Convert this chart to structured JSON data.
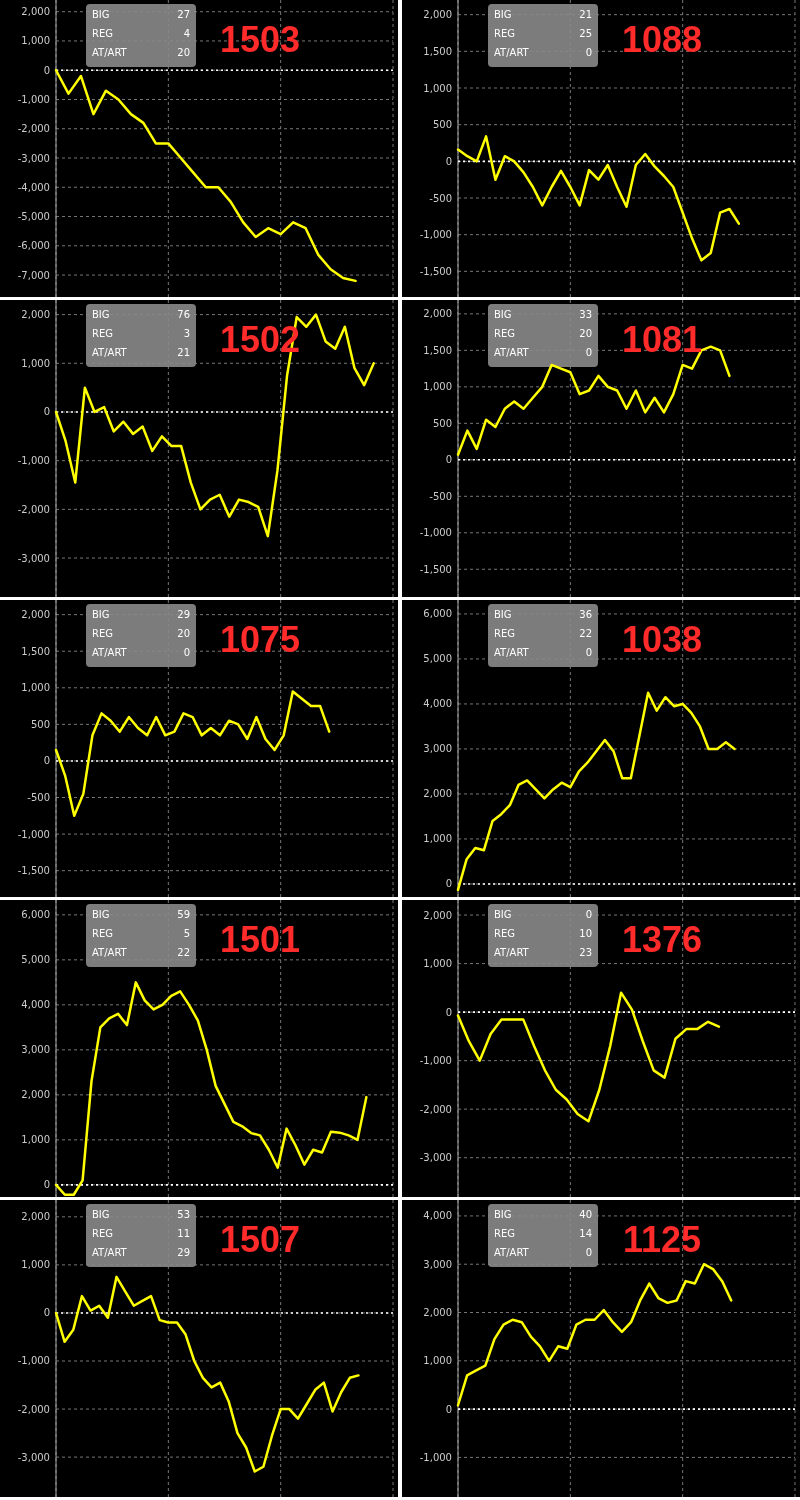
{
  "chart_data": [
    {
      "type": "line",
      "title": "1503",
      "annotations": [
        "BIG",
        "27",
        "REG",
        "4",
        "AT/ART",
        "20"
      ],
      "ylim": [
        -7750,
        2400
      ],
      "yticks": [
        {
          "value": 2000,
          "label": "2,000"
        },
        {
          "value": 1000,
          "label": "1,000"
        },
        0,
        {
          "value": -1000,
          "label": "-1,000"
        },
        {
          "value": -2000,
          "label": "-2,000"
        },
        {
          "value": -3000,
          "label": "-3,000"
        },
        {
          "value": -4000,
          "label": "-4,000"
        },
        {
          "value": -5000,
          "label": "-5,000"
        },
        {
          "value": -6000,
          "label": "-6,000"
        },
        {
          "value": -7000,
          "label": "-7,000"
        }
      ],
      "grid": true,
      "ref_lines": [
        {
          "axis": "y",
          "value": 0,
          "color": "#ffffff",
          "line_style": "dotted"
        }
      ],
      "categories": [
        null,
        null,
        null,
        null,
        null,
        null,
        null,
        null,
        null,
        null,
        null,
        null,
        null,
        null,
        null,
        null,
        null,
        null,
        null,
        null,
        null,
        null,
        null,
        null,
        null,
        null,
        null,
        null
      ],
      "series": [
        {
          "color": "#ffff00",
          "values": [
            0,
            -800,
            -200,
            -1500,
            -700,
            -1000,
            -1500,
            -1800,
            -2500,
            -2500,
            -3000,
            -3500,
            -4000,
            -4000,
            -4500,
            -5200,
            -5700,
            -5400,
            -5600,
            -5200,
            -5400,
            -6300,
            -6800,
            -7100,
            -7200,
            null,
            null,
            null
          ]
        }
      ]
    },
    {
      "type": "line",
      "title": "1088",
      "annotations": [
        "BIG",
        "21",
        "REG",
        "25",
        "AT/ART",
        "0"
      ],
      "ylim": [
        -1850,
        2200
      ],
      "yticks": [
        {
          "value": 2000,
          "label": "2,000"
        },
        {
          "value": 1500,
          "label": "1,500"
        },
        {
          "value": 1000,
          "label": "1,000"
        },
        500,
        0,
        -500,
        {
          "value": -1000,
          "label": "-1,000"
        },
        {
          "value": -1500,
          "label": "-1,500"
        }
      ],
      "grid": true,
      "ref_lines": [
        {
          "axis": "y",
          "value": 0,
          "color": "#ffffff",
          "line_style": "dotted"
        }
      ],
      "categories": [
        null,
        null,
        null,
        null,
        null,
        null,
        null,
        null,
        null,
        null,
        null,
        null,
        null,
        null,
        null,
        null,
        null,
        null,
        null,
        null,
        null,
        null,
        null,
        null,
        null,
        null,
        null,
        null,
        null,
        null,
        null,
        null,
        null,
        null,
        null,
        null,
        null
      ],
      "series": [
        {
          "color": "#ffff00",
          "values": [
            160,
            70,
            0,
            340,
            -250,
            70,
            0,
            -150,
            -350,
            -600,
            -350,
            -130,
            -350,
            -600,
            -120,
            -250,
            -50,
            -350,
            -620,
            -50,
            100,
            -70,
            -200,
            -350,
            -700,
            -1050,
            -1350,
            -1250,
            -700,
            -650,
            -850,
            null,
            null,
            null,
            null,
            null,
            null
          ]
        }
      ]
    },
    {
      "type": "line",
      "title": "1502",
      "annotations": [
        "BIG",
        "76",
        "REG",
        "3",
        "AT/ART",
        "21"
      ],
      "ylim": [
        -3800,
        2300
      ],
      "yticks": [
        {
          "value": 2000,
          "label": "2,000"
        },
        {
          "value": 1000,
          "label": "1,000"
        },
        0,
        {
          "value": -1000,
          "label": "-1,000"
        },
        {
          "value": -2000,
          "label": "-2,000"
        },
        {
          "value": -3000,
          "label": "-3,000"
        }
      ],
      "grid": true,
      "ref_lines": [
        {
          "axis": "y",
          "value": 0,
          "color": "#ffffff",
          "line_style": "dotted"
        }
      ],
      "categories": [
        null,
        null,
        null,
        null,
        null,
        null,
        null,
        null,
        null,
        null,
        null,
        null,
        null,
        null,
        null,
        null,
        null,
        null,
        null,
        null,
        null,
        null,
        null,
        null,
        null,
        null,
        null,
        null,
        null,
        null,
        null,
        null,
        null,
        null,
        null,
        null
      ],
      "series": [
        {
          "color": "#ffff00",
          "values": [
            0,
            -600,
            -1450,
            500,
            0,
            100,
            -400,
            -200,
            -450,
            -300,
            -800,
            -500,
            -700,
            -700,
            -1450,
            -2000,
            -1800,
            -1700,
            -2150,
            -1800,
            -1850,
            -1950,
            -2550,
            -1200,
            750,
            1950,
            1750,
            2000,
            1450,
            1300,
            1750,
            900,
            550,
            1000,
            null,
            null
          ]
        }
      ]
    },
    {
      "type": "line",
      "title": "1081",
      "annotations": [
        "BIG",
        "33",
        "REG",
        "20",
        "AT/ART",
        "0"
      ],
      "ylim": [
        -1880,
        2190
      ],
      "yticks": [
        {
          "value": 2000,
          "label": "2,000"
        },
        {
          "value": 1500,
          "label": "1,500"
        },
        {
          "value": 1000,
          "label": "1,000"
        },
        500,
        0,
        -500,
        {
          "value": -1000,
          "label": "-1,000"
        },
        {
          "value": -1500,
          "label": "-1,500"
        }
      ],
      "grid": true,
      "ref_lines": [
        {
          "axis": "y",
          "value": 0,
          "color": "#ffffff",
          "line_style": "dotted"
        }
      ],
      "categories": [
        null,
        null,
        null,
        null,
        null,
        null,
        null,
        null,
        null,
        null,
        null,
        null,
        null,
        null,
        null,
        null,
        null,
        null,
        null,
        null,
        null,
        null,
        null,
        null,
        null,
        null,
        null,
        null,
        null,
        null,
        null,
        null,
        null,
        null,
        null,
        null,
        null
      ],
      "series": [
        {
          "color": "#ffff00",
          "values": [
            70,
            400,
            150,
            550,
            450,
            700,
            800,
            700,
            850,
            1000,
            1300,
            1250,
            1200,
            900,
            950,
            1150,
            1000,
            950,
            700,
            950,
            650,
            850,
            650,
            900,
            1300,
            1250,
            1500,
            1550,
            1500,
            1150,
            null,
            null,
            null,
            null,
            null,
            null,
            null
          ]
        }
      ]
    },
    {
      "type": "line",
      "title": "1075",
      "annotations": [
        "BIG",
        "29",
        "REG",
        "20",
        "AT/ART",
        "0"
      ],
      "ylim": [
        -1860,
        2200
      ],
      "yticks": [
        {
          "value": 2000,
          "label": "2,000"
        },
        {
          "value": 1500,
          "label": "1,500"
        },
        {
          "value": 1000,
          "label": "1,000"
        },
        500,
        0,
        -500,
        {
          "value": -1000,
          "label": "-1,000"
        },
        {
          "value": -1500,
          "label": "-1,500"
        }
      ],
      "grid": true,
      "ref_lines": [
        {
          "axis": "y",
          "value": 0,
          "color": "#ffffff",
          "line_style": "dotted"
        }
      ],
      "categories": [
        null,
        null,
        null,
        null,
        null,
        null,
        null,
        null,
        null,
        null,
        null,
        null,
        null,
        null,
        null,
        null,
        null,
        null,
        null,
        null,
        null,
        null,
        null,
        null,
        null,
        null,
        null,
        null,
        null,
        null,
        null,
        null,
        null,
        null,
        null,
        null,
        null,
        null
      ],
      "series": [
        {
          "color": "#ffff00",
          "values": [
            150,
            -200,
            -750,
            -450,
            350,
            650,
            550,
            400,
            600,
            450,
            350,
            600,
            350,
            400,
            650,
            600,
            350,
            450,
            350,
            550,
            500,
            300,
            600,
            300,
            150,
            350,
            950,
            850,
            750,
            750,
            400,
            null,
            null,
            null,
            null,
            null,
            null,
            null
          ]
        }
      ]
    },
    {
      "type": "line",
      "title": "1038",
      "annotations": [
        "BIG",
        "36",
        "REG",
        "22",
        "AT/ART",
        "0"
      ],
      "ylim": [
        -290,
        6310
      ],
      "yticks": [
        {
          "value": 6000,
          "label": "6,000"
        },
        {
          "value": 5000,
          "label": "5,000"
        },
        {
          "value": 4000,
          "label": "4,000"
        },
        {
          "value": 3000,
          "label": "3,000"
        },
        {
          "value": 2000,
          "label": "2,000"
        },
        {
          "value": 1000,
          "label": "1,000"
        },
        0
      ],
      "grid": true,
      "ref_lines": [
        {
          "axis": "y",
          "value": 0,
          "color": "#ffffff",
          "line_style": "dotted"
        }
      ],
      "categories": [
        null,
        null,
        null,
        null,
        null,
        null,
        null,
        null,
        null,
        null,
        null,
        null,
        null,
        null,
        null,
        null,
        null,
        null,
        null,
        null,
        null,
        null,
        null,
        null,
        null,
        null,
        null,
        null,
        null,
        null,
        null,
        null,
        null,
        null,
        null,
        null,
        null,
        null,
        null,
        null
      ],
      "series": [
        {
          "color": "#ffff00",
          "values": [
            -130,
            550,
            800,
            750,
            1400,
            1550,
            1750,
            2200,
            2300,
            2100,
            1900,
            2100,
            2250,
            2150,
            2500,
            2700,
            2950,
            3200,
            2950,
            2350,
            2350,
            3300,
            4250,
            3850,
            4150,
            3950,
            4000,
            3800,
            3500,
            3000,
            3000,
            3150,
            3000,
            null,
            null,
            null,
            null,
            null,
            null,
            null
          ]
        }
      ]
    },
    {
      "type": "line",
      "title": "1501",
      "annotations": [
        "BIG",
        "59",
        "REG",
        "5",
        "AT/ART",
        "22"
      ],
      "ylim": [
        -270,
        6330
      ],
      "yticks": [
        {
          "value": 6000,
          "label": "6,000"
        },
        {
          "value": 5000,
          "label": "5,000"
        },
        {
          "value": 4000,
          "label": "4,000"
        },
        {
          "value": 3000,
          "label": "3,000"
        },
        {
          "value": 2000,
          "label": "2,000"
        },
        {
          "value": 1000,
          "label": "1,000"
        },
        0
      ],
      "grid": true,
      "ref_lines": [
        {
          "axis": "y",
          "value": 0,
          "color": "#ffffff",
          "line_style": "dotted"
        }
      ],
      "categories": [
        null,
        null,
        null,
        null,
        null,
        null,
        null,
        null,
        null,
        null,
        null,
        null,
        null,
        null,
        null,
        null,
        null,
        null,
        null,
        null,
        null,
        null,
        null,
        null,
        null,
        null,
        null,
        null,
        null,
        null,
        null,
        null,
        null,
        null,
        null,
        null,
        null,
        null,
        null
      ],
      "series": [
        {
          "color": "#ffff00",
          "values": [
            0,
            -220,
            -220,
            100,
            2300,
            3500,
            3700,
            3800,
            3550,
            4500,
            4100,
            3900,
            4000,
            4200,
            4300,
            4000,
            3650,
            3000,
            2200,
            1800,
            1400,
            1300,
            1150,
            1100,
            780,
            380,
            1250,
            880,
            450,
            780,
            720,
            1180,
            1160,
            1100,
            1000,
            1950,
            null,
            null,
            null
          ]
        }
      ]
    },
    {
      "type": "line",
      "title": "1376",
      "annotations": [
        "BIG",
        "0",
        "REG",
        "10",
        "AT/ART",
        "23"
      ],
      "ylim": [
        -3810,
        2310
      ],
      "yticks": [
        {
          "value": 2000,
          "label": "2,000"
        },
        {
          "value": 1000,
          "label": "1,000"
        },
        0,
        {
          "value": -1000,
          "label": "-1,000"
        },
        {
          "value": -2000,
          "label": "-2,000"
        },
        {
          "value": -3000,
          "label": "-3,000"
        }
      ],
      "grid": true,
      "ref_lines": [
        {
          "axis": "y",
          "value": 0,
          "color": "#ffffff",
          "line_style": "dotted"
        }
      ],
      "categories": [
        null,
        null,
        null,
        null,
        null,
        null,
        null,
        null,
        null,
        null,
        null,
        null,
        null,
        null,
        null,
        null,
        null,
        null,
        null,
        null,
        null,
        null,
        null,
        null,
        null,
        null,
        null,
        null,
        null,
        null,
        null,
        null
      ],
      "series": [
        {
          "color": "#ffff00",
          "values": [
            -70,
            -600,
            -1000,
            -450,
            -150,
            -150,
            -150,
            -700,
            -1200,
            -1600,
            -1800,
            -2100,
            -2250,
            -1600,
            -700,
            400,
            50,
            -600,
            -1200,
            -1350,
            -550,
            -350,
            -350,
            -200,
            -300,
            null,
            null,
            null,
            null,
            null,
            null,
            null
          ]
        }
      ]
    },
    {
      "type": "line",
      "title": "1507",
      "annotations": [
        "BIG",
        "53",
        "REG",
        "11",
        "AT/ART",
        "29"
      ],
      "ylim": [
        -3830,
        2350
      ],
      "yticks": [
        {
          "value": 2000,
          "label": "2,000"
        },
        {
          "value": 1000,
          "label": "1,000"
        },
        0,
        {
          "value": -1000,
          "label": "-1,000"
        },
        {
          "value": -2000,
          "label": "-2,000"
        },
        {
          "value": -3000,
          "label": "-3,000"
        }
      ],
      "grid": true,
      "ref_lines": [
        {
          "axis": "y",
          "value": 0,
          "color": "#ffffff",
          "line_style": "dotted"
        }
      ],
      "categories": [
        null,
        null,
        null,
        null,
        null,
        null,
        null,
        null,
        null,
        null,
        null,
        null,
        null,
        null,
        null,
        null,
        null,
        null,
        null,
        null,
        null,
        null,
        null,
        null,
        null,
        null,
        null,
        null,
        null,
        null,
        null,
        null,
        null,
        null,
        null,
        null,
        null,
        null,
        null,
        null
      ],
      "series": [
        {
          "color": "#ffff00",
          "values": [
            0,
            -600,
            -350,
            350,
            50,
            150,
            -100,
            750,
            450,
            150,
            250,
            350,
            -150,
            -200,
            -200,
            -450,
            -1000,
            -1350,
            -1550,
            -1450,
            -1850,
            -2500,
            -2800,
            -3300,
            -3200,
            -2550,
            -2000,
            -2000,
            -2200,
            -1900,
            -1600,
            -1450,
            -2050,
            -1650,
            -1350,
            -1300,
            null,
            null,
            null,
            null
          ]
        }
      ]
    },
    {
      "type": "line",
      "title": "1125",
      "annotations": [
        "BIG",
        "40",
        "REG",
        "14",
        "AT/ART",
        "0"
      ],
      "ylim": [
        -1820,
        4330
      ],
      "yticks": [
        {
          "value": 4000,
          "label": "4,000"
        },
        {
          "value": 3000,
          "label": "3,000"
        },
        {
          "value": 2000,
          "label": "2,000"
        },
        {
          "value": 1000,
          "label": "1,000"
        },
        0,
        {
          "value": -1000,
          "label": "-1,000"
        }
      ],
      "grid": true,
      "ref_lines": [
        {
          "axis": "y",
          "value": 0,
          "color": "#ffffff",
          "line_style": "dotted"
        }
      ],
      "categories": [
        null,
        null,
        null,
        null,
        null,
        null,
        null,
        null,
        null,
        null,
        null,
        null,
        null,
        null,
        null,
        null,
        null,
        null,
        null,
        null,
        null,
        null,
        null,
        null,
        null,
        null,
        null,
        null,
        null,
        null,
        null,
        null,
        null,
        null,
        null,
        null,
        null,
        null
      ],
      "series": [
        {
          "color": "#ffff00",
          "values": [
            80,
            700,
            800,
            900,
            1450,
            1750,
            1850,
            1800,
            1500,
            1300,
            1000,
            1300,
            1250,
            1750,
            1850,
            1850,
            2050,
            1800,
            1600,
            1800,
            2250,
            2600,
            2300,
            2200,
            2250,
            2650,
            2600,
            3000,
            2900,
            2650,
            2250,
            null,
            null,
            null,
            null,
            null,
            null,
            null
          ]
        }
      ]
    }
  ]
}
